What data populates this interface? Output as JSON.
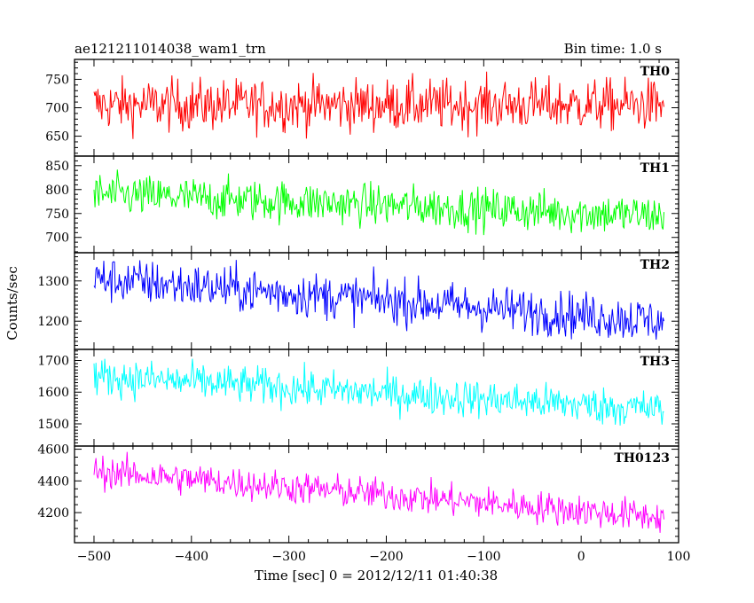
{
  "header": {
    "left_title": "ae121211014038_wam1_trn",
    "right_title": "Bin time: 1.0 s"
  },
  "chart_data": {
    "type": "line",
    "xlabel": "Time [sec] 0 = 2012/12/11 01:40:38",
    "ylabel": "Counts/sec",
    "xlim": [
      -520,
      100
    ],
    "x_ticks": [
      -500,
      -400,
      -300,
      -200,
      -100,
      0,
      100
    ],
    "x_range": [
      -500,
      85
    ],
    "panels": [
      {
        "name": "TH0",
        "color": "#ff0000",
        "ylim": [
          615,
          785
        ],
        "y_ticks": [
          650,
          700,
          750
        ],
        "trend": [
          [
            -500,
            705
          ],
          [
            85,
            705
          ]
        ],
        "noise": 42
      },
      {
        "name": "TH1",
        "color": "#00ff00",
        "ylim": [
          668,
          870
        ],
        "y_ticks": [
          700,
          750,
          800,
          850
        ],
        "trend": [
          [
            -500,
            790
          ],
          [
            85,
            745
          ]
        ],
        "noise": 40
      },
      {
        "name": "TH2",
        "color": "#0000ff",
        "ylim": [
          1130,
          1370
        ],
        "y_ticks": [
          1200,
          1300
        ],
        "trend": [
          [
            -500,
            1305
          ],
          [
            85,
            1200
          ]
        ],
        "noise": 52
      },
      {
        "name": "TH3",
        "color": "#00ffff",
        "ylim": [
          1430,
          1735
        ],
        "y_ticks": [
          1500,
          1600,
          1700
        ],
        "trend": [
          [
            -500,
            1650
          ],
          [
            85,
            1545
          ]
        ],
        "noise": 55
      },
      {
        "name": "TH0123",
        "color": "#ff00ff",
        "ylim": [
          4010,
          4620
        ],
        "y_ticks": [
          4200,
          4400,
          4600
        ],
        "trend": [
          [
            -500,
            4460
          ],
          [
            85,
            4170
          ]
        ],
        "noise": 95
      }
    ]
  }
}
